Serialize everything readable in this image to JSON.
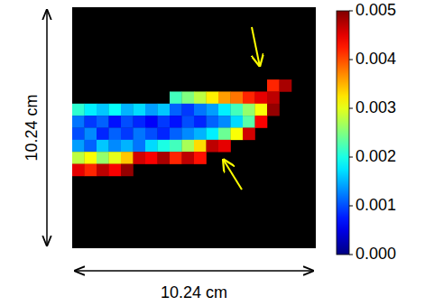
{
  "chart_data": {
    "type": "heatmap",
    "xlabel": "10.24 cm",
    "ylabel": "10.24 cm",
    "colorbar_lim": [
      0,
      0.005
    ],
    "colorbar_ticks": [
      {
        "value": 0,
        "label": "0.000"
      },
      {
        "value": 0.001,
        "label": "0.001"
      },
      {
        "value": 0.002,
        "label": "0.002"
      },
      {
        "value": 0.003,
        "label": "0.003"
      },
      {
        "value": 0.004,
        "label": "0.004"
      },
      {
        "value": 0.005,
        "label": "0.005"
      }
    ],
    "cells": [
      [
        null,
        null,
        null,
        null,
        null,
        null,
        null,
        null,
        null,
        null,
        null,
        null,
        null,
        null,
        null,
        null,
        null,
        null,
        null,
        null
      ],
      [
        null,
        null,
        null,
        null,
        null,
        null,
        null,
        null,
        null,
        null,
        null,
        null,
        null,
        null,
        null,
        null,
        null,
        null,
        null,
        null
      ],
      [
        null,
        null,
        null,
        null,
        null,
        null,
        null,
        null,
        null,
        null,
        null,
        null,
        null,
        null,
        null,
        null,
        null,
        null,
        null,
        null
      ],
      [
        null,
        null,
        null,
        null,
        null,
        null,
        null,
        null,
        null,
        null,
        null,
        null,
        null,
        null,
        null,
        null,
        null,
        null,
        null,
        null
      ],
      [
        null,
        null,
        null,
        null,
        null,
        null,
        null,
        null,
        null,
        null,
        null,
        null,
        null,
        null,
        null,
        null,
        null,
        null,
        null,
        null
      ],
      [
        null,
        null,
        null,
        null,
        null,
        null,
        null,
        null,
        null,
        null,
        null,
        null,
        null,
        null,
        null,
        null,
        null,
        null,
        null,
        null
      ],
      [
        null,
        null,
        null,
        null,
        null,
        null,
        null,
        null,
        null,
        null,
        null,
        null,
        null,
        null,
        null,
        null,
        0.0042,
        0.0048,
        null,
        null
      ],
      [
        null,
        null,
        null,
        null,
        null,
        null,
        null,
        null,
        0.0022,
        0.0025,
        0.0028,
        0.0032,
        0.0036,
        0.0038,
        0.0042,
        0.0045,
        0.0047,
        null,
        null,
        null
      ],
      [
        0.0021,
        0.0018,
        0.0016,
        0.0019,
        0.0015,
        0.0017,
        0.0014,
        0.0016,
        0.0011,
        0.0009,
        0.0012,
        0.0014,
        0.0018,
        0.0022,
        0.0026,
        0.0031,
        0.0049,
        null,
        null,
        null
      ],
      [
        0.0012,
        0.0009,
        0.0011,
        0.0007,
        0.001,
        0.0008,
        0.0006,
        0.0009,
        0.0007,
        0.001,
        0.0008,
        0.0011,
        0.0013,
        0.0017,
        0.0023,
        0.0044,
        null,
        null,
        null,
        null
      ],
      [
        0.001,
        0.0013,
        0.0008,
        0.0011,
        0.0009,
        0.0012,
        0.001,
        0.0008,
        0.0011,
        0.0013,
        0.0015,
        0.0018,
        0.0024,
        0.0031,
        0.0046,
        null,
        null,
        null,
        null,
        null
      ],
      [
        0.0014,
        0.0011,
        0.0016,
        0.0013,
        0.0015,
        0.0012,
        0.0017,
        0.002,
        0.0022,
        0.0027,
        0.0033,
        0.0047,
        0.0045,
        null,
        null,
        null,
        null,
        null,
        null,
        null
      ],
      [
        0.0028,
        0.0031,
        0.0026,
        0.003,
        0.0034,
        0.0046,
        0.0044,
        0.0048,
        0.0042,
        0.0047,
        0.0043,
        null,
        null,
        null,
        null,
        null,
        null,
        null,
        null,
        null
      ],
      [
        0.0045,
        0.0042,
        0.0047,
        0.0044,
        0.0049,
        null,
        null,
        null,
        null,
        null,
        null,
        null,
        null,
        null,
        null,
        null,
        null,
        null,
        null,
        null
      ],
      [
        null,
        null,
        null,
        null,
        null,
        null,
        null,
        null,
        null,
        null,
        null,
        null,
        null,
        null,
        null,
        null,
        null,
        null,
        null,
        null
      ],
      [
        null,
        null,
        null,
        null,
        null,
        null,
        null,
        null,
        null,
        null,
        null,
        null,
        null,
        null,
        null,
        null,
        null,
        null,
        null,
        null
      ],
      [
        null,
        null,
        null,
        null,
        null,
        null,
        null,
        null,
        null,
        null,
        null,
        null,
        null,
        null,
        null,
        null,
        null,
        null,
        null,
        null
      ],
      [
        null,
        null,
        null,
        null,
        null,
        null,
        null,
        null,
        null,
        null,
        null,
        null,
        null,
        null,
        null,
        null,
        null,
        null,
        null,
        null
      ],
      [
        null,
        null,
        null,
        null,
        null,
        null,
        null,
        null,
        null,
        null,
        null,
        null,
        null,
        null,
        null,
        null,
        null,
        null,
        null,
        null
      ],
      [
        null,
        null,
        null,
        null,
        null,
        null,
        null,
        null,
        null,
        null,
        null,
        null,
        null,
        null,
        null,
        null,
        null,
        null,
        null,
        null
      ]
    ]
  }
}
